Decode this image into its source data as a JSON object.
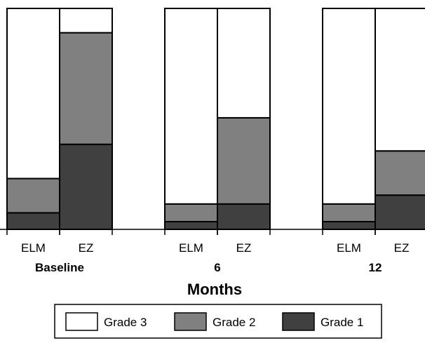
{
  "chart_data": {
    "type": "bar",
    "stacked": true,
    "percent_stacked": true,
    "xlabel": "Months",
    "ylabel": "",
    "ylim": [
      0,
      100
    ],
    "groups": [
      {
        "label": "Baseline",
        "categories": [
          "ELM",
          "EZ"
        ]
      },
      {
        "label": "6",
        "categories": [
          "ELM",
          "EZ"
        ]
      },
      {
        "label": "12",
        "categories": [
          "ELM",
          "EZ"
        ]
      }
    ],
    "categories": [
      "ELM",
      "EZ",
      "ELM",
      "EZ",
      "ELM",
      "EZ"
    ],
    "series": [
      {
        "name": "Grade 1",
        "color": "#404040",
        "values": [
          7.5,
          38.5,
          3.5,
          11.5,
          3.5,
          15.5
        ]
      },
      {
        "name": "Grade 2",
        "color": "#808080",
        "values": [
          15.5,
          50.5,
          8.0,
          39.0,
          8.0,
          20.0
        ]
      },
      {
        "name": "Grade 3",
        "color": "#ffffff",
        "values": [
          77.0,
          11.0,
          88.5,
          49.5,
          88.5,
          64.5
        ]
      }
    ],
    "legend": {
      "position": "bottom",
      "order": [
        "Grade 3",
        "Grade 2",
        "Grade 1"
      ]
    },
    "grid": false
  }
}
